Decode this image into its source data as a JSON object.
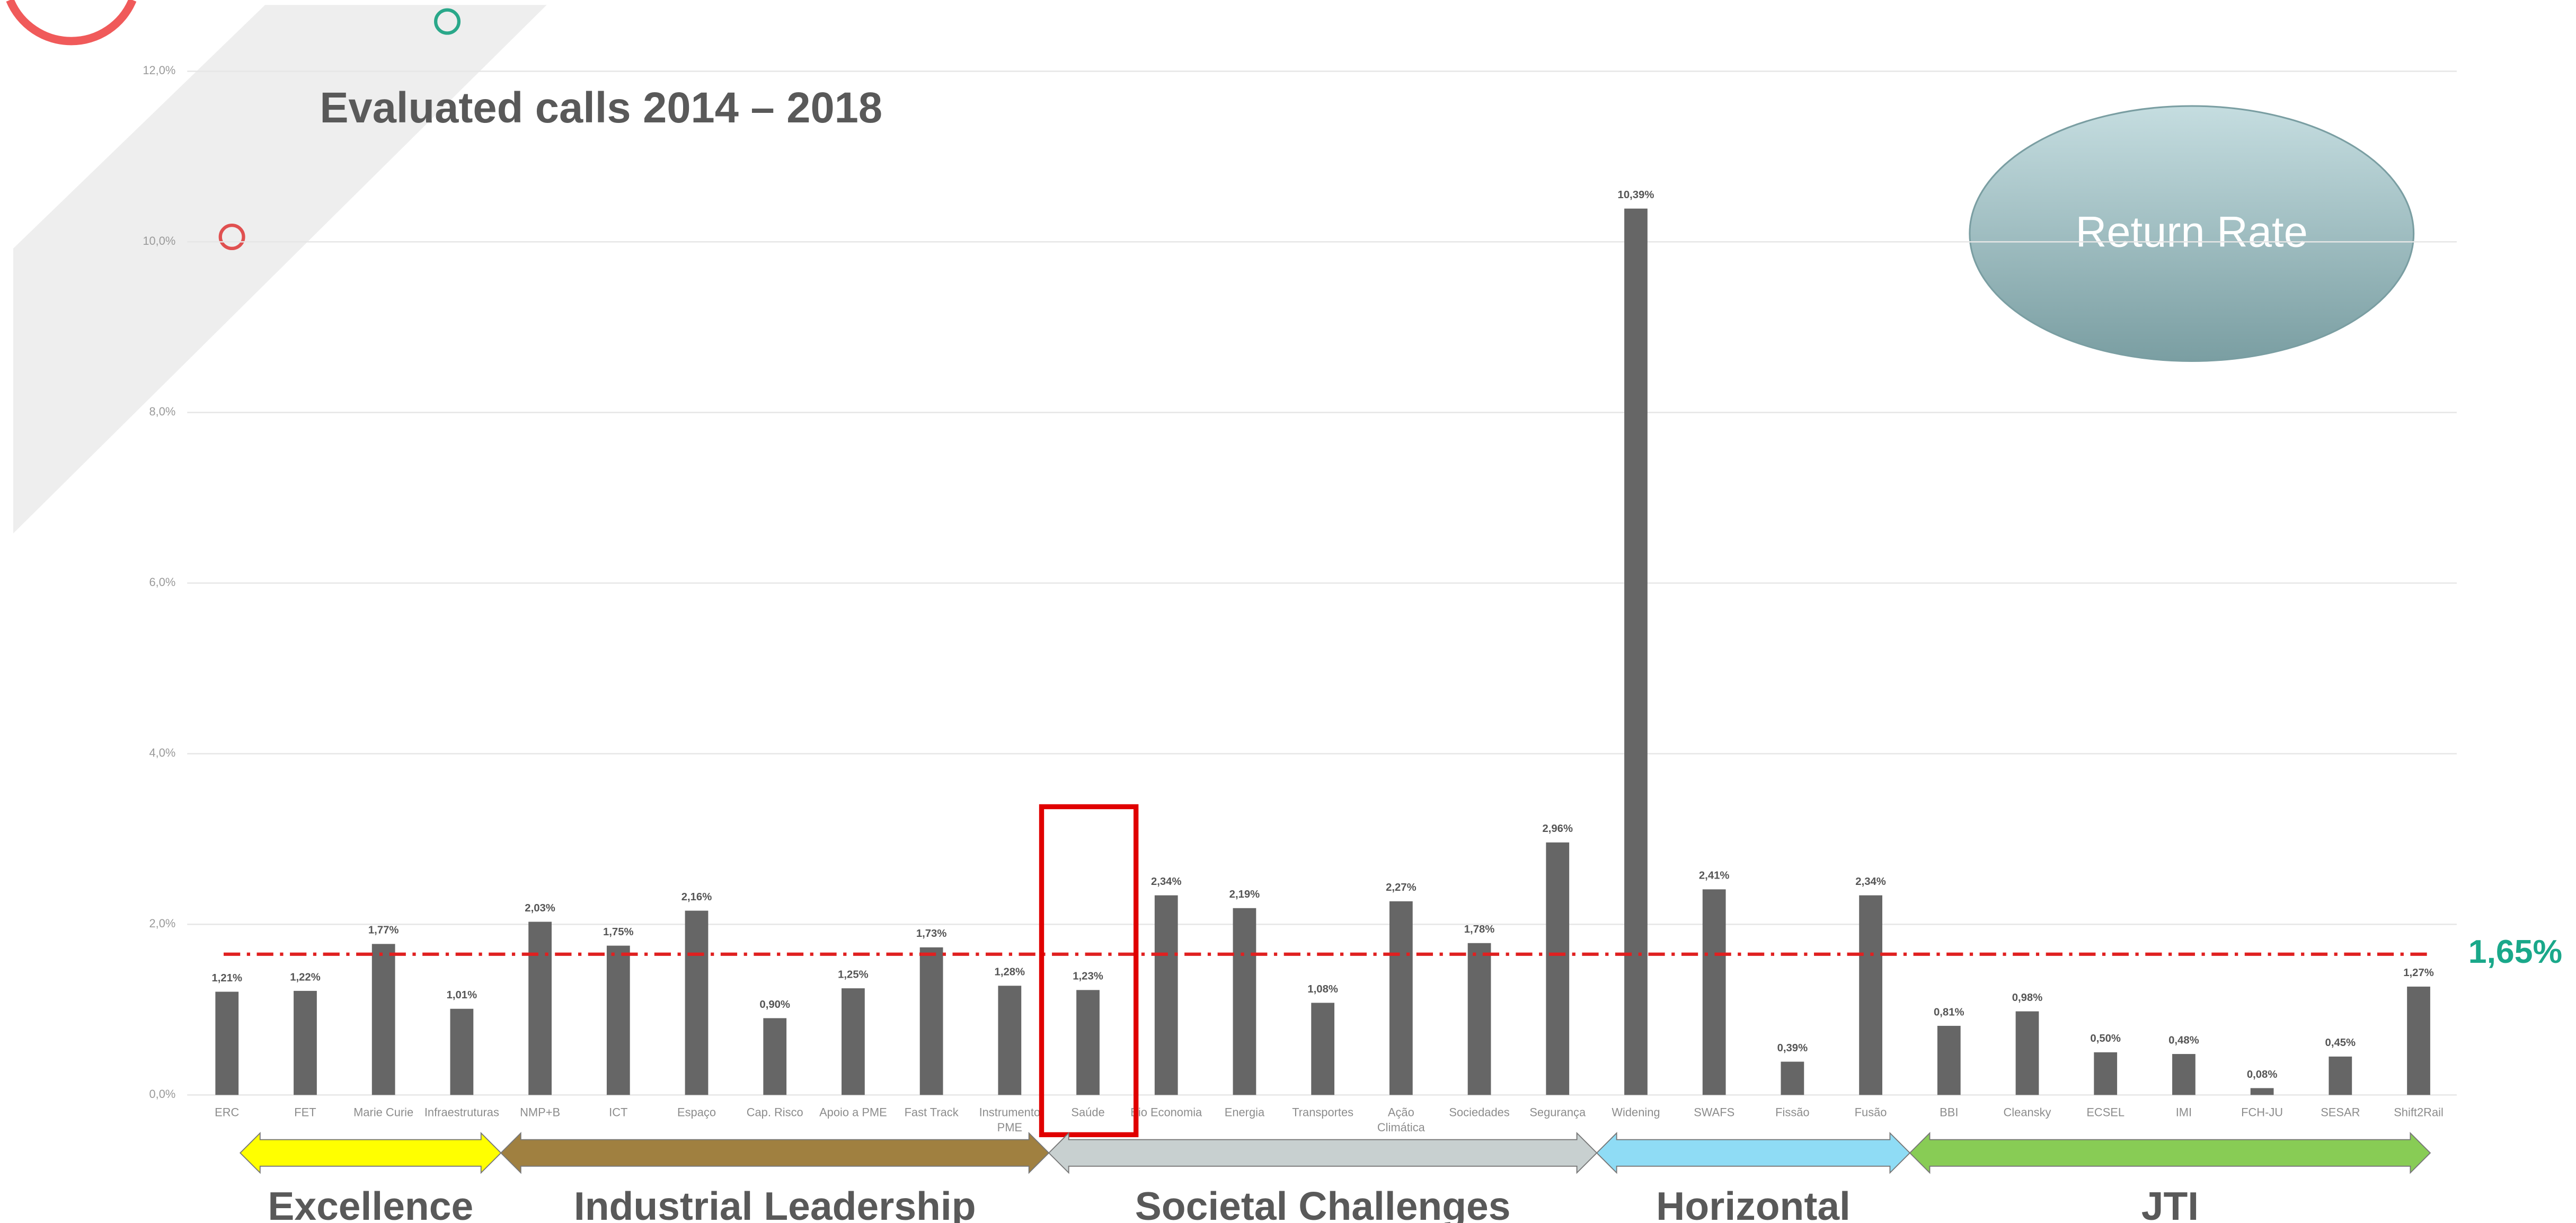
{
  "chart_data": {
    "type": "bar",
    "title": "Evaluated calls 2014 – 2018",
    "badge": "Return Rate",
    "categories": [
      "ERC",
      "FET",
      "Marie Curie",
      "Infraestruturas",
      "NMP+B",
      "ICT",
      "Espaço",
      "Cap. Risco",
      "Apoio a PME",
      "Fast Track",
      "Instrumento PME",
      "Saúde",
      "Bio Economia",
      "Energia",
      "Transportes",
      "Ação Climática",
      "Sociedades",
      "Segurança",
      "Widening",
      "SWAFS",
      "Fissão",
      "Fusão",
      "BBI",
      "Cleansky",
      "ECSEL",
      "IMI",
      "FCH-JU",
      "SESAR",
      "Shift2Rail"
    ],
    "values": [
      1.21,
      1.22,
      1.77,
      1.01,
      2.03,
      1.75,
      2.16,
      0.9,
      1.25,
      1.73,
      1.28,
      1.23,
      2.34,
      2.19,
      1.08,
      2.27,
      1.78,
      2.96,
      10.39,
      2.41,
      0.39,
      2.34,
      0.81,
      0.98,
      0.5,
      0.48,
      0.08,
      0.45,
      1.27
    ],
    "value_labels": [
      "1,21%",
      "1,22%",
      "1,77%",
      "1,01%",
      "2,03%",
      "1,75%",
      "2,16%",
      "0,90%",
      "1,25%",
      "1,73%",
      "1,28%",
      "1,23%",
      "2,34%",
      "2,19%",
      "1,08%",
      "2,27%",
      "1,78%",
      "2,96%",
      "10,39%",
      "2,41%",
      "0,39%",
      "2,34%",
      "0,81%",
      "0,98%",
      "0,50%",
      "0,48%",
      "0,08%",
      "0,45%",
      "1,27%"
    ],
    "color": "#666666",
    "ylim": [
      0,
      12
    ],
    "yticks": [
      {
        "value": 0,
        "label": "0,0%"
      },
      {
        "value": 2,
        "label": "2,0%"
      },
      {
        "value": 4,
        "label": "4,0%"
      },
      {
        "value": 6,
        "label": "6,0%"
      },
      {
        "value": 8,
        "label": "8,0%"
      },
      {
        "value": 10,
        "label": "10,0%"
      },
      {
        "value": 12,
        "label": "12,0%"
      }
    ],
    "grid": true,
    "reference": {
      "value": 1.65,
      "label": "1,65%",
      "color": "#e02020"
    },
    "groups": [
      {
        "name": "Excellence",
        "color": "#ffff00"
      },
      {
        "name": "Industrial Leadership",
        "color": "#a08040"
      },
      {
        "name": "Societal Challenges",
        "color": "#c8d0d0"
      },
      {
        "name": "Horizontal",
        "color": "#8fdcf5"
      },
      {
        "name": "JTI",
        "color": "#88cc55"
      }
    ]
  }
}
